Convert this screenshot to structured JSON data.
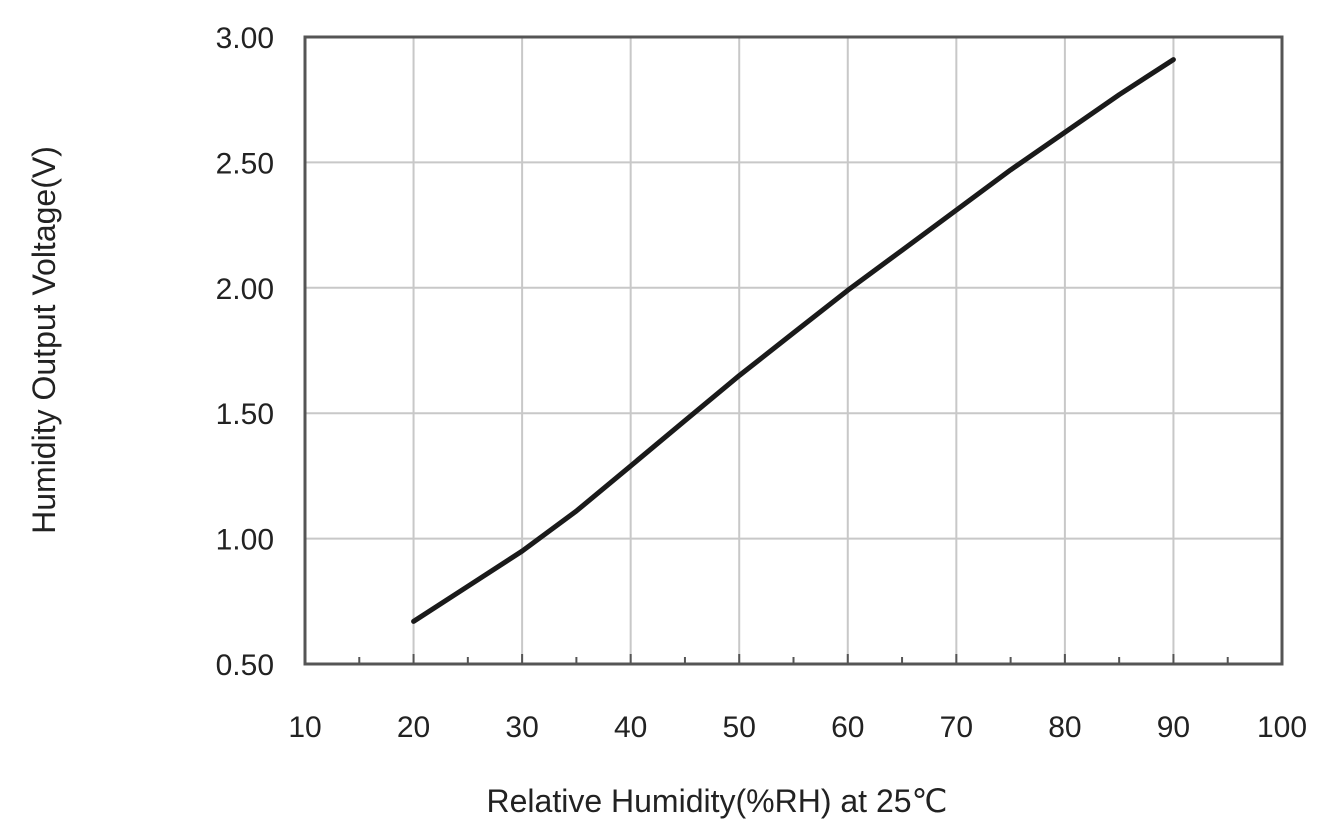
{
  "chart_data": {
    "type": "line",
    "title": "",
    "xlabel": "Relative Humidity(%RH) at 25℃",
    "ylabel": "Humidity Output Voltage(V)",
    "xlim": [
      10,
      100
    ],
    "ylim": [
      0.5,
      3.0
    ],
    "x_ticks": [
      10,
      20,
      30,
      40,
      50,
      60,
      70,
      80,
      90,
      100
    ],
    "y_ticks": [
      0.5,
      1.0,
      1.5,
      2.0,
      2.5,
      3.0
    ],
    "x_tick_labels": [
      "10",
      "20",
      "30",
      "40",
      "50",
      "60",
      "70",
      "80",
      "90",
      "100"
    ],
    "y_tick_labels": [
      "0.50",
      "1.00",
      "1.50",
      "2.00",
      "2.50",
      "3.00"
    ],
    "grid": true,
    "legend": "none",
    "series": [
      {
        "x": [
          20,
          25,
          30,
          35,
          40,
          45,
          50,
          55,
          60,
          65,
          70,
          75,
          80,
          85,
          90
        ],
        "y": [
          0.67,
          0.81,
          0.95,
          1.11,
          1.29,
          1.47,
          1.65,
          1.82,
          1.99,
          2.15,
          2.31,
          2.47,
          2.62,
          2.77,
          2.91
        ],
        "color": "#1a1a1a"
      }
    ],
    "colors": {
      "line": "#1a1a1a",
      "grid": "#c8c8c8",
      "frame": "#555555",
      "text": "#222222"
    }
  }
}
